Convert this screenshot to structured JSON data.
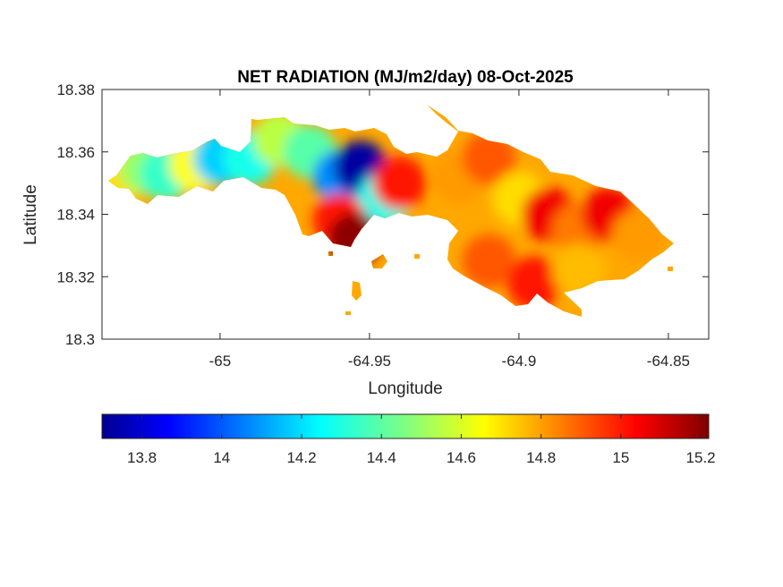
{
  "chart_data": {
    "type": "heatmap",
    "title": "NET RADIATION (MJ/m2/day) 08-Oct-2025",
    "xlabel": "Longitude",
    "ylabel": "Latitude",
    "xlim": [
      -65.0395,
      -64.8365
    ],
    "ylim": [
      18.3,
      18.38
    ],
    "xticks": [
      -65,
      -64.95,
      -64.9,
      -64.85
    ],
    "xtick_labels": [
      "-65",
      "-64.95",
      "-64.9",
      "-64.85"
    ],
    "yticks": [
      18.3,
      18.32,
      18.34,
      18.36,
      18.38
    ],
    "ytick_labels": [
      "18.3",
      "18.32",
      "18.34",
      "18.36",
      "18.38"
    ],
    "grid": false,
    "colormap": "jet",
    "colorbar": {
      "location": "bottom",
      "clim": [
        13.7,
        15.22
      ],
      "ticks": [
        13.8,
        14,
        14.2,
        14.4,
        14.6,
        14.8,
        15,
        15.2
      ],
      "tick_labels": [
        "13.8",
        "14",
        "14.2",
        "14.4",
        "14.6",
        "14.8",
        "15",
        "15.2"
      ]
    },
    "region_samples": [
      {
        "lon": -65.035,
        "lat": 18.351,
        "value": 14.7
      },
      {
        "lon": -65.025,
        "lat": 18.355,
        "value": 14.5
      },
      {
        "lon": -65.018,
        "lat": 18.353,
        "value": 14.35
      },
      {
        "lon": -65.008,
        "lat": 18.356,
        "value": 14.65
      },
      {
        "lon": -65.0,
        "lat": 18.358,
        "value": 14.2
      },
      {
        "lon": -64.99,
        "lat": 18.358,
        "value": 14.3
      },
      {
        "lon": -64.98,
        "lat": 18.364,
        "value": 14.55
      },
      {
        "lon": -64.97,
        "lat": 18.36,
        "value": 14.4
      },
      {
        "lon": -64.96,
        "lat": 18.352,
        "value": 14.1
      },
      {
        "lon": -64.953,
        "lat": 18.355,
        "value": 13.75
      },
      {
        "lon": -64.945,
        "lat": 18.345,
        "value": 14.3
      },
      {
        "lon": -64.96,
        "lat": 18.338,
        "value": 15.0
      },
      {
        "lon": -64.955,
        "lat": 18.332,
        "value": 15.2
      },
      {
        "lon": -64.94,
        "lat": 18.35,
        "value": 15.0
      },
      {
        "lon": -64.92,
        "lat": 18.352,
        "value": 14.8
      },
      {
        "lon": -64.91,
        "lat": 18.358,
        "value": 14.9
      },
      {
        "lon": -64.9,
        "lat": 18.345,
        "value": 14.7
      },
      {
        "lon": -64.89,
        "lat": 18.34,
        "value": 15.05
      },
      {
        "lon": -64.88,
        "lat": 18.335,
        "value": 14.85
      },
      {
        "lon": -64.87,
        "lat": 18.34,
        "value": 15.05
      },
      {
        "lon": -64.86,
        "lat": 18.333,
        "value": 14.8
      },
      {
        "lon": -64.91,
        "lat": 18.325,
        "value": 14.9
      },
      {
        "lon": -64.895,
        "lat": 18.318,
        "value": 15.0
      },
      {
        "lon": -64.88,
        "lat": 18.322,
        "value": 14.75
      }
    ]
  }
}
